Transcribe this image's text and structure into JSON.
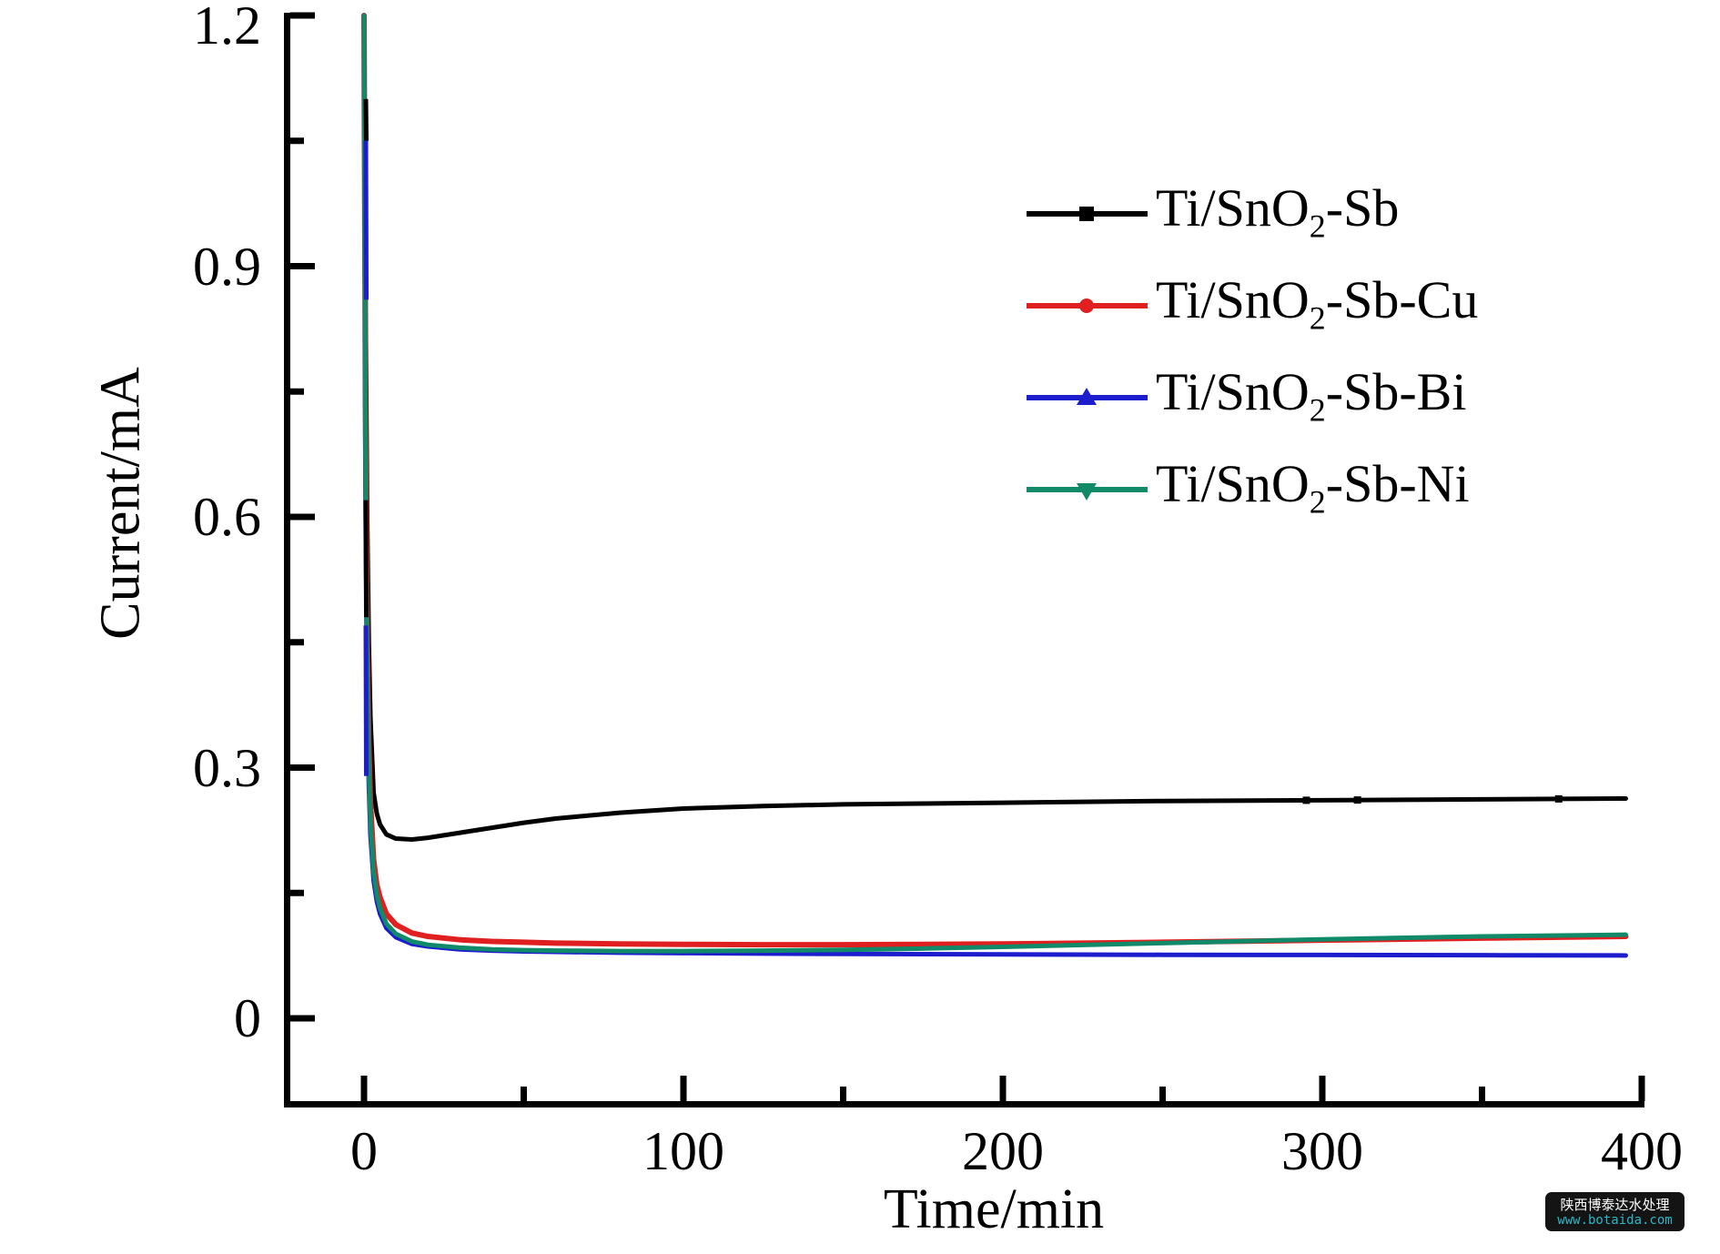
{
  "chart_data": {
    "type": "line",
    "title": "",
    "xlabel": "Time/min",
    "ylabel": "Current/mA",
    "xlim": [
      0,
      400
    ],
    "ylim": [
      -0.1,
      1.2
    ],
    "x_major_ticks": [
      0,
      100,
      200,
      300,
      400
    ],
    "x_major_tick_labels": [
      "0",
      "100",
      "200",
      "300",
      "400"
    ],
    "x_minor_ticks": [
      50,
      150,
      250,
      350
    ],
    "y_major_ticks": [
      0,
      0.3,
      0.6,
      0.9,
      1.2
    ],
    "y_major_tick_labels": [
      "0",
      "0.3",
      "0.6",
      "0.9",
      "1.2"
    ],
    "y_minor_ticks": [
      0.15,
      0.45,
      0.75,
      1.05
    ],
    "grid": false,
    "legend_position": "upper right",
    "x": [
      0,
      0.5,
      1,
      1.5,
      2,
      3,
      4,
      5,
      7,
      10,
      15,
      20,
      30,
      40,
      50,
      60,
      80,
      100,
      125,
      150,
      175,
      200,
      250,
      300,
      350,
      395
    ],
    "series": [
      {
        "name": "Ti/SnO2-Sb",
        "color": "#000000",
        "marker": "square",
        "values": [
          1.2,
          0.85,
          0.6,
          0.45,
          0.36,
          0.27,
          0.245,
          0.232,
          0.22,
          0.215,
          0.214,
          0.216,
          0.222,
          0.228,
          0.234,
          0.239,
          0.246,
          0.251,
          0.254,
          0.256,
          0.257,
          0.258,
          0.26,
          0.261,
          0.262,
          0.263
        ]
      },
      {
        "name": "Ti/SnO2-Sb-Cu",
        "color": "#e02020",
        "marker": "circle",
        "values": [
          1.2,
          0.7,
          0.45,
          0.33,
          0.26,
          0.19,
          0.16,
          0.145,
          0.125,
          0.112,
          0.102,
          0.098,
          0.094,
          0.092,
          0.091,
          0.09,
          0.089,
          0.0885,
          0.088,
          0.088,
          0.0885,
          0.089,
          0.091,
          0.0935,
          0.096,
          0.098
        ]
      },
      {
        "name": "Ti/SnO2-Sb-Bi",
        "color": "#1d1dce",
        "marker": "triangle-up",
        "values": [
          1.2,
          0.6,
          0.38,
          0.28,
          0.22,
          0.165,
          0.14,
          0.125,
          0.108,
          0.097,
          0.089,
          0.086,
          0.0825,
          0.081,
          0.08,
          0.0795,
          0.0785,
          0.078,
          0.0775,
          0.077,
          0.0768,
          0.0765,
          0.076,
          0.0758,
          0.0755,
          0.0752
        ]
      },
      {
        "name": "Ti/SnO2-Sb-Ni",
        "color": "#108a68",
        "marker": "triangle-down",
        "values": [
          1.2,
          0.65,
          0.42,
          0.3,
          0.235,
          0.175,
          0.148,
          0.132,
          0.113,
          0.101,
          0.092,
          0.088,
          0.0845,
          0.0825,
          0.0815,
          0.081,
          0.0805,
          0.0805,
          0.081,
          0.082,
          0.0835,
          0.0855,
          0.09,
          0.0945,
          0.098,
          0.1
        ]
      }
    ],
    "black_marker_times": [
      295,
      311,
      374
    ],
    "spike_overlay_segments": [
      {
        "color": "#000000",
        "v_from": 1.1,
        "v_to": 1.05
      },
      {
        "color": "#1d1dce",
        "v_from": 1.05,
        "v_to": 0.86
      },
      {
        "color": "#000000",
        "v_from": 0.62,
        "v_to": 0.48
      },
      {
        "color": "#1d1dce",
        "v_from": 0.47,
        "v_to": 0.29
      }
    ]
  },
  "axes": {
    "x_title": "Time/min",
    "y_title": "Current/mA"
  },
  "legend": {
    "items": [
      {
        "label_base": "Ti/SnO",
        "label_sub": "2",
        "label_rest": "-Sb",
        "color": "#000000",
        "marker": "square"
      },
      {
        "label_base": "Ti/SnO",
        "label_sub": "2",
        "label_rest": "-Sb-Cu",
        "color": "#e02020",
        "marker": "circle"
      },
      {
        "label_base": "Ti/SnO",
        "label_sub": "2",
        "label_rest": "-Sb-Bi",
        "color": "#1d1dce",
        "marker": "triangle-up"
      },
      {
        "label_base": "Ti/SnO",
        "label_sub": "2",
        "label_rest": "-Sb-Ni",
        "color": "#108a68",
        "marker": "triangle-down"
      }
    ]
  },
  "watermark": {
    "line1": "陕西博泰达水处理",
    "line2": "www.botaida.com",
    "bg": "#141414",
    "line1_color": "#ffffff",
    "line2_color": "#2ab7c9"
  }
}
